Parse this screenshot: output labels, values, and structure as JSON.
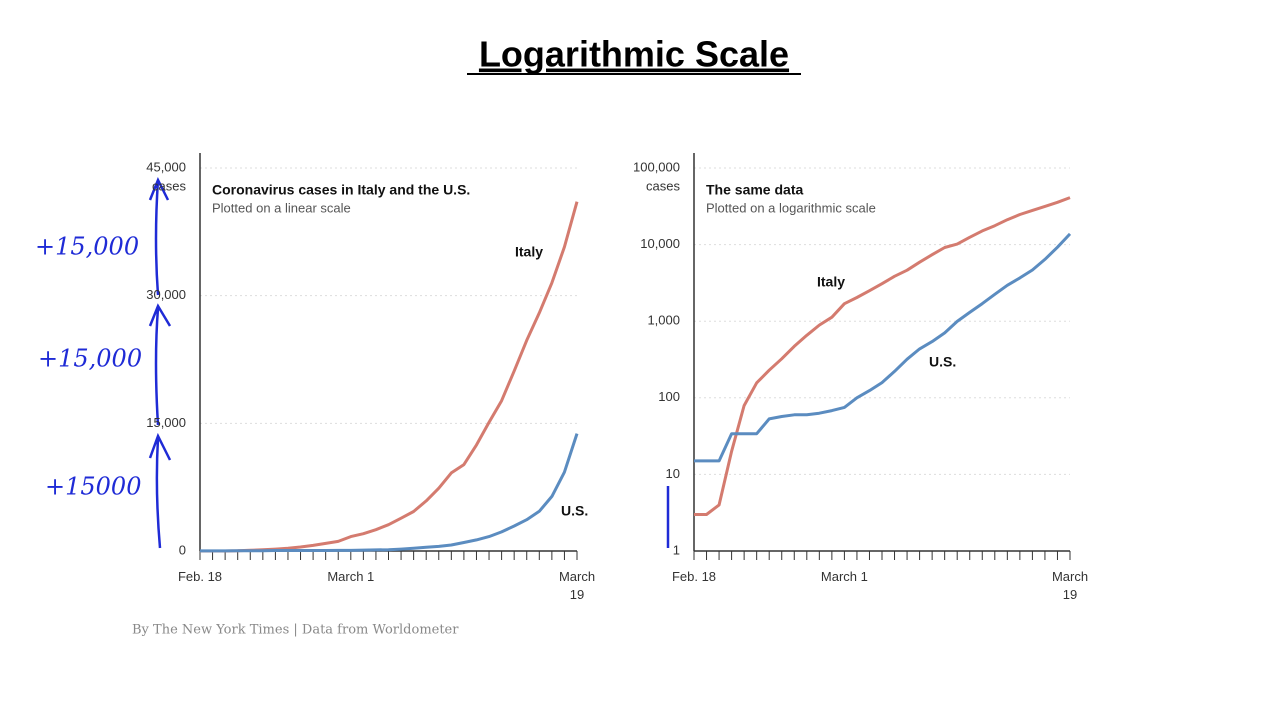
{
  "title": "Logarithmic Scale",
  "chart_data": [
    {
      "type": "line",
      "title": "Coronavirus cases in Italy and the U.S.",
      "subtitle": "Plotted on a linear scale",
      "y_label": "cases",
      "categories": [
        "Feb. 18",
        null,
        null,
        null,
        null,
        null,
        null,
        null,
        null,
        null,
        null,
        null,
        "March 1",
        null,
        null,
        null,
        null,
        null,
        null,
        null,
        null,
        null,
        null,
        null,
        null,
        null,
        null,
        null,
        null,
        null,
        "March 19"
      ],
      "series": [
        {
          "name": "Italy",
          "color": "#d47b6f",
          "values": [
            3,
            3,
            4,
            20,
            79,
            157,
            229,
            323,
            470,
            655,
            889,
            1128,
            1694,
            2036,
            2502,
            3089,
            3858,
            4636,
            5883,
            7375,
            9172,
            10149,
            12462,
            15113,
            17660,
            21157,
            24747,
            27980,
            31506,
            35713,
            41035
          ]
        },
        {
          "name": "U.S.",
          "color": "#5b8cc0",
          "values": [
            15,
            15,
            15,
            34,
            34,
            34,
            53,
            57,
            60,
            60,
            63,
            68,
            75,
            100,
            124,
            158,
            221,
            319,
            435,
            541,
            704,
            994,
            1301,
            1697,
            2247,
            2943,
            3680,
            4663,
            6411,
            9259,
            13789
          ]
        }
      ],
      "ylim": [
        0,
        45000
      ],
      "yticks": [
        0,
        {
          "value": 15000,
          "label": "15,000"
        },
        {
          "value": 30000,
          "label": "30,000"
        },
        {
          "value": 45000,
          "label": "45,000"
        }
      ],
      "grid": true,
      "log_scale": false
    },
    {
      "type": "line",
      "title": "The same data",
      "subtitle": "Plotted on a logarithmic scale",
      "y_label": "cases",
      "categories": [
        "Feb. 18",
        null,
        null,
        null,
        null,
        null,
        null,
        null,
        null,
        null,
        null,
        null,
        "March 1",
        null,
        null,
        null,
        null,
        null,
        null,
        null,
        null,
        null,
        null,
        null,
        null,
        null,
        null,
        null,
        null,
        null,
        "March 19"
      ],
      "series": [
        {
          "name": "Italy",
          "color": "#d47b6f",
          "values": [
            3,
            3,
            4,
            20,
            79,
            157,
            229,
            323,
            470,
            655,
            889,
            1128,
            1694,
            2036,
            2502,
            3089,
            3858,
            4636,
            5883,
            7375,
            9172,
            10149,
            12462,
            15113,
            17660,
            21157,
            24747,
            27980,
            31506,
            35713,
            41035
          ]
        },
        {
          "name": "U.S.",
          "color": "#5b8cc0",
          "values": [
            15,
            15,
            15,
            34,
            34,
            34,
            53,
            57,
            60,
            60,
            63,
            68,
            75,
            100,
            124,
            158,
            221,
            319,
            435,
            541,
            704,
            994,
            1301,
            1697,
            2247,
            2943,
            3680,
            4663,
            6411,
            9259,
            13789
          ]
        }
      ],
      "ylim": [
        1,
        100000
      ],
      "yticks": [
        1,
        10,
        100,
        {
          "value": 1000,
          "label": "1,000"
        },
        {
          "value": 10000,
          "label": "10,000"
        },
        {
          "value": 100000,
          "label": "100,000"
        }
      ],
      "grid": true,
      "log_scale": true
    }
  ],
  "annotations": [
    "+15,000",
    "+15,000",
    "+15000"
  ],
  "footer": "By The New York Times | Data from Worldometer"
}
